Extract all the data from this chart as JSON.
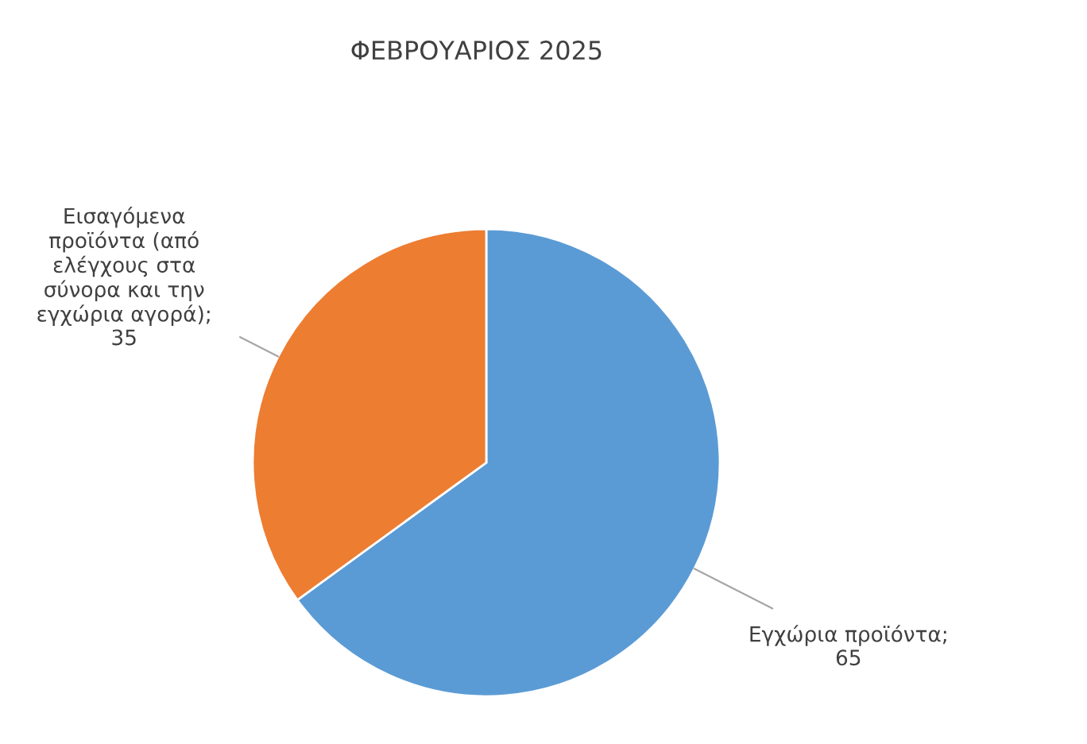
{
  "chart_data": {
    "type": "pie",
    "title": "ΦΕΒΡΟΥΑΡΙΟΣ 2025",
    "categories": [
      "Εγχώρια προϊόντα",
      "Εισαγόμενα προϊόντα (από ελέγχους στα σύνορα και την εγχώρια αγορά)"
    ],
    "values": [
      65,
      35
    ],
    "colors": [
      "#5b9bd5",
      "#ed7d31"
    ],
    "value_labels": [
      "; 65",
      "; 35"
    ]
  }
}
